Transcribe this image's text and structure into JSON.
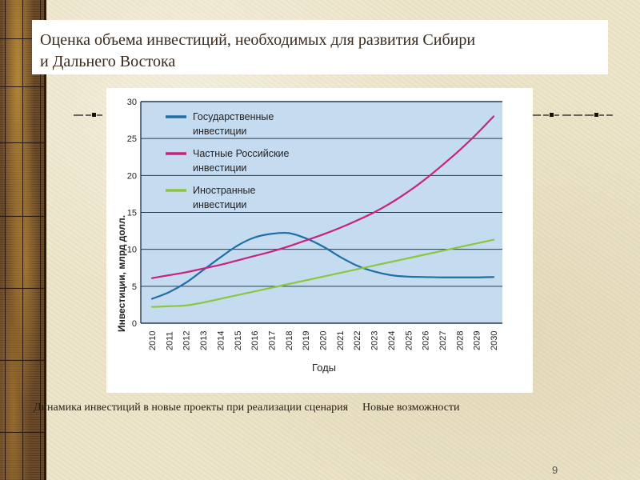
{
  "slide": {
    "title_line1": "Оценка объема инвестиций, необходимых для развития Сибири",
    "title_line2": "и Дальнего Востока",
    "caption": "Динамика инвестиций в новые проекты при реализации сценария  Новые возможности",
    "page_number": "9"
  },
  "colors": {
    "plot_background": "#c5dcf0",
    "state": "#1e6fa8",
    "private_russian": "#c8237e",
    "foreign": "#8cc63f",
    "gridline": "#2a3a4a"
  },
  "chart_data": {
    "type": "line",
    "title": "",
    "xlabel": "Годы",
    "ylabel": "Инвестиции, млрд долл.",
    "ylim": [
      0,
      30
    ],
    "yticks": [
      "0",
      "5",
      "10",
      "15",
      "20",
      "25",
      "30"
    ],
    "grid": true,
    "legend_position": "upper-left",
    "x": [
      "2010",
      "2011",
      "2012",
      "2013",
      "2014",
      "2015",
      "2016",
      "2017",
      "2018",
      "2019",
      "2020",
      "2021",
      "2022",
      "2023",
      "2024",
      "2025",
      "2026",
      "2027",
      "2028",
      "2029",
      "2030"
    ],
    "series": [
      {
        "name": "Государственные инвестиции",
        "legend_line1": "Государственные",
        "legend_line2": "инвестиции",
        "color": "#1e6fa8",
        "values": [
          3.3,
          4.2,
          5.5,
          7.2,
          8.9,
          10.5,
          11.6,
          12.1,
          12.2,
          11.5,
          10.4,
          9.0,
          7.8,
          7.0,
          6.5,
          6.3,
          6.25,
          6.2,
          6.2,
          6.2,
          6.25
        ]
      },
      {
        "name": "Частные Российские инвестиции",
        "legend_line1": "Частные Российские",
        "legend_line2": "инвестиции",
        "color": "#c8237e",
        "values": [
          6.1,
          6.5,
          6.9,
          7.4,
          7.9,
          8.5,
          9.1,
          9.7,
          10.4,
          11.2,
          12.0,
          12.9,
          13.9,
          15.0,
          16.3,
          17.8,
          19.5,
          21.4,
          23.4,
          25.6,
          28.0
        ]
      },
      {
        "name": "Иностранные инвестиции",
        "legend_line1": "Иностранные",
        "legend_line2": "инвестиции",
        "color": "#8cc63f",
        "values": [
          2.2,
          2.3,
          2.4,
          2.8,
          3.3,
          3.8,
          4.3,
          4.8,
          5.3,
          5.8,
          6.3,
          6.8,
          7.3,
          7.8,
          8.3,
          8.8,
          9.3,
          9.8,
          10.3,
          10.8,
          11.3
        ]
      }
    ]
  }
}
